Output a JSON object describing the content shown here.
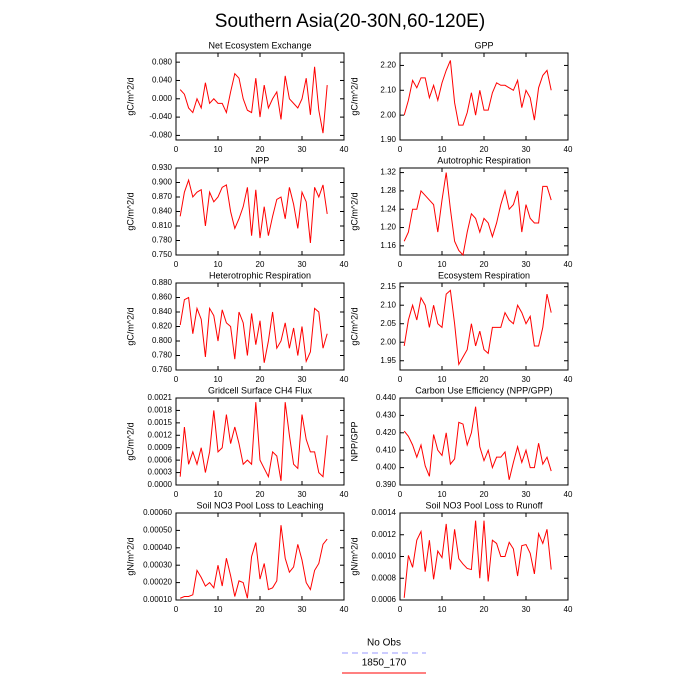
{
  "title": "Southern Asia(20-30N,60-120E)",
  "legend": [
    {
      "name": "No Obs",
      "color": "#9999ff",
      "dashed": true
    },
    {
      "name": "1850_170",
      "color": "#ff0000",
      "dashed": false
    }
  ],
  "chart_data": [
    {
      "type": "line",
      "title": "Net Ecosystem Exchange",
      "ylabel": "gC/m^2/d",
      "color": "#ff0000",
      "x": [
        1,
        2,
        3,
        4,
        5,
        6,
        7,
        8,
        9,
        10,
        11,
        12,
        13,
        14,
        15,
        16,
        17,
        18,
        19,
        20,
        21,
        22,
        23,
        24,
        25,
        26,
        27,
        28,
        29,
        30,
        31,
        32,
        33,
        34,
        35,
        36
      ],
      "values": [
        0.02,
        0.01,
        -0.02,
        -0.03,
        0.0,
        -0.02,
        0.035,
        -0.01,
        0.0,
        -0.01,
        -0.01,
        -0.03,
        0.015,
        0.055,
        0.045,
        0.0,
        -0.025,
        -0.03,
        0.045,
        -0.04,
        0.03,
        -0.02,
        0.0,
        0.015,
        -0.045,
        0.05,
        0.0,
        -0.01,
        -0.02,
        0.0,
        0.045,
        -0.035,
        0.07,
        -0.025,
        -0.075,
        0.03
      ],
      "xlim": [
        0,
        40
      ],
      "xticks": [
        0,
        10,
        20,
        30,
        40
      ],
      "ylim": [
        -0.09,
        0.1
      ],
      "yticks": [
        {
          "value": -0.08,
          "label": "-0.080"
        },
        {
          "value": -0.04,
          "label": "-0.040"
        },
        {
          "value": 0,
          "label": "0.000"
        },
        {
          "value": 0.04,
          "label": "0.040"
        },
        {
          "value": 0.08,
          "label": "0.080"
        }
      ]
    },
    {
      "type": "line",
      "title": "GPP",
      "ylabel": "gC/m^2/d",
      "color": "#ff0000",
      "x": [
        1,
        2,
        3,
        4,
        5,
        6,
        7,
        8,
        9,
        10,
        11,
        12,
        13,
        14,
        15,
        16,
        17,
        18,
        19,
        20,
        21,
        22,
        23,
        24,
        25,
        26,
        27,
        28,
        29,
        30,
        31,
        32,
        33,
        34,
        35,
        36
      ],
      "values": [
        2.0,
        2.06,
        2.14,
        2.11,
        2.15,
        2.15,
        2.07,
        2.12,
        2.06,
        2.13,
        2.18,
        2.22,
        2.05,
        1.96,
        1.96,
        2.01,
        2.09,
        2.0,
        2.1,
        2.02,
        2.02,
        2.09,
        2.13,
        2.12,
        2.12,
        2.11,
        2.1,
        2.14,
        2.03,
        2.1,
        2.07,
        1.98,
        2.11,
        2.16,
        2.18,
        2.1
      ],
      "xlim": [
        0,
        40
      ],
      "xticks": [
        0,
        10,
        20,
        30,
        40
      ],
      "ylim": [
        1.9,
        2.25
      ],
      "yticks": [
        {
          "value": 1.9,
          "label": "1.90"
        },
        {
          "value": 2.0,
          "label": "2.00"
        },
        {
          "value": 2.1,
          "label": "2.10"
        },
        {
          "value": 2.2,
          "label": "2.20"
        }
      ]
    },
    {
      "type": "line",
      "title": "NPP",
      "ylabel": "gC/m^2/d",
      "color": "#ff0000",
      "x": [
        1,
        2,
        3,
        4,
        5,
        6,
        7,
        8,
        9,
        10,
        11,
        12,
        13,
        14,
        15,
        16,
        17,
        18,
        19,
        20,
        21,
        22,
        23,
        24,
        25,
        26,
        27,
        28,
        29,
        30,
        31,
        32,
        33,
        34,
        35,
        36
      ],
      "values": [
        0.83,
        0.88,
        0.905,
        0.87,
        0.88,
        0.885,
        0.81,
        0.88,
        0.86,
        0.87,
        0.89,
        0.895,
        0.84,
        0.805,
        0.825,
        0.85,
        0.89,
        0.79,
        0.885,
        0.785,
        0.85,
        0.79,
        0.83,
        0.865,
        0.87,
        0.825,
        0.89,
        0.855,
        0.805,
        0.88,
        0.86,
        0.775,
        0.89,
        0.87,
        0.895,
        0.835
      ],
      "xlim": [
        0,
        40
      ],
      "xticks": [
        0,
        10,
        20,
        30,
        40
      ],
      "ylim": [
        0.75,
        0.93
      ],
      "yticks": [
        {
          "value": 0.75,
          "label": "0.750"
        },
        {
          "value": 0.78,
          "label": "0.780"
        },
        {
          "value": 0.81,
          "label": "0.810"
        },
        {
          "value": 0.84,
          "label": "0.840"
        },
        {
          "value": 0.87,
          "label": "0.870"
        },
        {
          "value": 0.9,
          "label": "0.900"
        },
        {
          "value": 0.93,
          "label": "0.930"
        }
      ]
    },
    {
      "type": "line",
      "title": "Autotrophic Respiration",
      "ylabel": "gC/m^2/d",
      "color": "#ff0000",
      "x": [
        1,
        2,
        3,
        4,
        5,
        6,
        7,
        8,
        9,
        10,
        11,
        12,
        13,
        14,
        15,
        16,
        17,
        18,
        19,
        20,
        21,
        22,
        23,
        24,
        25,
        26,
        27,
        28,
        29,
        30,
        31,
        32,
        33,
        34,
        35,
        36
      ],
      "values": [
        1.17,
        1.19,
        1.24,
        1.24,
        1.28,
        1.27,
        1.26,
        1.25,
        1.19,
        1.26,
        1.32,
        1.24,
        1.17,
        1.15,
        1.14,
        1.19,
        1.23,
        1.22,
        1.19,
        1.22,
        1.21,
        1.18,
        1.21,
        1.25,
        1.28,
        1.24,
        1.25,
        1.28,
        1.19,
        1.25,
        1.22,
        1.21,
        1.21,
        1.29,
        1.29,
        1.26
      ],
      "xlim": [
        0,
        40
      ],
      "xticks": [
        0,
        10,
        20,
        30,
        40
      ],
      "ylim": [
        1.14,
        1.33
      ],
      "yticks": [
        {
          "value": 1.16,
          "label": "1.16"
        },
        {
          "value": 1.2,
          "label": "1.20"
        },
        {
          "value": 1.24,
          "label": "1.24"
        },
        {
          "value": 1.28,
          "label": "1.28"
        },
        {
          "value": 1.32,
          "label": "1.32"
        }
      ]
    },
    {
      "type": "line",
      "title": "Heterotrophic Respiration",
      "ylabel": "gC/m^2/d",
      "color": "#ff0000",
      "x": [
        1,
        2,
        3,
        4,
        5,
        6,
        7,
        8,
        9,
        10,
        11,
        12,
        13,
        14,
        15,
        16,
        17,
        18,
        19,
        20,
        21,
        22,
        23,
        24,
        25,
        26,
        27,
        28,
        29,
        30,
        31,
        32,
        33,
        34,
        35,
        36
      ],
      "values": [
        0.822,
        0.857,
        0.86,
        0.81,
        0.845,
        0.83,
        0.778,
        0.845,
        0.835,
        0.8,
        0.843,
        0.825,
        0.82,
        0.775,
        0.84,
        0.825,
        0.78,
        0.838,
        0.795,
        0.828,
        0.77,
        0.8,
        0.84,
        0.79,
        0.8,
        0.825,
        0.79,
        0.818,
        0.78,
        0.82,
        0.772,
        0.785,
        0.845,
        0.84,
        0.79,
        0.81
      ],
      "xlim": [
        0,
        40
      ],
      "xticks": [
        0,
        10,
        20,
        30,
        40
      ],
      "ylim": [
        0.76,
        0.88
      ],
      "yticks": [
        {
          "value": 0.76,
          "label": "0.760"
        },
        {
          "value": 0.78,
          "label": "0.780"
        },
        {
          "value": 0.8,
          "label": "0.800"
        },
        {
          "value": 0.82,
          "label": "0.820"
        },
        {
          "value": 0.84,
          "label": "0.840"
        },
        {
          "value": 0.86,
          "label": "0.860"
        },
        {
          "value": 0.88,
          "label": "0.880"
        }
      ]
    },
    {
      "type": "line",
      "title": "Ecosystem Respiration",
      "ylabel": "gC/m^2/d",
      "color": "#ff0000",
      "x": [
        1,
        2,
        3,
        4,
        5,
        6,
        7,
        8,
        9,
        10,
        11,
        12,
        13,
        14,
        15,
        16,
        17,
        18,
        19,
        20,
        21,
        22,
        23,
        24,
        25,
        26,
        27,
        28,
        29,
        30,
        31,
        32,
        33,
        34,
        35,
        36
      ],
      "values": [
        1.99,
        2.06,
        2.1,
        2.06,
        2.12,
        2.1,
        2.04,
        2.1,
        2.05,
        2.04,
        2.13,
        2.14,
        2.05,
        1.94,
        1.96,
        1.98,
        2.05,
        1.99,
        2.03,
        1.98,
        1.97,
        2.04,
        2.04,
        2.04,
        2.08,
        2.06,
        2.05,
        2.1,
        2.08,
        2.05,
        2.07,
        1.99,
        1.99,
        2.04,
        2.13,
        2.08
      ],
      "xlim": [
        0,
        40
      ],
      "xticks": [
        0,
        10,
        20,
        30,
        40
      ],
      "ylim": [
        1.925,
        2.16
      ],
      "yticks": [
        {
          "value": 1.95,
          "label": "1.95"
        },
        {
          "value": 2.0,
          "label": "2.00"
        },
        {
          "value": 2.05,
          "label": "2.05"
        },
        {
          "value": 2.1,
          "label": "2.10"
        },
        {
          "value": 2.15,
          "label": "2.15"
        }
      ]
    },
    {
      "type": "line",
      "title": "Gridcell Surface CH4 Flux",
      "ylabel": "gC/m^2/d",
      "color": "#ff0000",
      "x": [
        1,
        2,
        3,
        4,
        5,
        6,
        7,
        8,
        9,
        10,
        11,
        12,
        13,
        14,
        15,
        16,
        17,
        18,
        19,
        20,
        21,
        22,
        23,
        24,
        25,
        26,
        27,
        28,
        29,
        30,
        31,
        32,
        33,
        34,
        35,
        36
      ],
      "values": [
        0.0002,
        0.0014,
        0.0005,
        0.0008,
        0.0005,
        0.0009,
        0.0003,
        0.0008,
        0.0018,
        0.0008,
        0.0009,
        0.0017,
        0.001,
        0.0014,
        0.001,
        0.0005,
        0.0006,
        0.0005,
        0.002,
        0.0006,
        0.0004,
        0.0002,
        0.0008,
        0.0007,
        0.0001,
        0.002,
        0.0012,
        0.0005,
        0.0004,
        0.0017,
        0.0011,
        0.0008,
        0.0008,
        0.0003,
        0.0002,
        0.0012
      ],
      "xlim": [
        0,
        40
      ],
      "xticks": [
        0,
        10,
        20,
        30,
        40
      ],
      "ylim": [
        0,
        0.0021
      ],
      "yticks": [
        {
          "value": 0,
          "label": "0.0000"
        },
        {
          "value": 0.0003,
          "label": "0.0003"
        },
        {
          "value": 0.0006,
          "label": "0.0006"
        },
        {
          "value": 0.0009,
          "label": "0.0009"
        },
        {
          "value": 0.0012,
          "label": "0.0012"
        },
        {
          "value": 0.0015,
          "label": "0.0015"
        },
        {
          "value": 0.0018,
          "label": "0.0018"
        },
        {
          "value": 0.0021,
          "label": "0.0021"
        }
      ]
    },
    {
      "type": "line",
      "title": "Carbon Use Efficiency (NPP/GPP)",
      "ylabel": "NPP/GPP",
      "color": "#ff0000",
      "x": [
        1,
        2,
        3,
        4,
        5,
        6,
        7,
        8,
        9,
        10,
        11,
        12,
        13,
        14,
        15,
        16,
        17,
        18,
        19,
        20,
        21,
        22,
        23,
        24,
        25,
        26,
        27,
        28,
        29,
        30,
        31,
        32,
        33,
        34,
        35,
        36
      ],
      "values": [
        0.421,
        0.418,
        0.413,
        0.406,
        0.413,
        0.401,
        0.395,
        0.419,
        0.41,
        0.407,
        0.42,
        0.402,
        0.405,
        0.426,
        0.425,
        0.413,
        0.42,
        0.435,
        0.412,
        0.404,
        0.41,
        0.4,
        0.406,
        0.406,
        0.409,
        0.393,
        0.403,
        0.412,
        0.403,
        0.41,
        0.4,
        0.4,
        0.414,
        0.402,
        0.406,
        0.398
      ],
      "xlim": [
        0,
        40
      ],
      "xticks": [
        0,
        10,
        20,
        30,
        40
      ],
      "ylim": [
        0.39,
        0.44
      ],
      "yticks": [
        {
          "value": 0.39,
          "label": "0.390"
        },
        {
          "value": 0.4,
          "label": "0.400"
        },
        {
          "value": 0.41,
          "label": "0.410"
        },
        {
          "value": 0.42,
          "label": "0.420"
        },
        {
          "value": 0.43,
          "label": "0.430"
        },
        {
          "value": 0.44,
          "label": "0.440"
        }
      ]
    },
    {
      "type": "line",
      "title": "Soil NO3 Pool Loss to Leaching",
      "ylabel": "gN/m^2/d",
      "color": "#ff0000",
      "x": [
        1,
        2,
        3,
        4,
        5,
        6,
        7,
        8,
        9,
        10,
        11,
        12,
        13,
        14,
        15,
        16,
        17,
        18,
        19,
        20,
        21,
        22,
        23,
        24,
        25,
        26,
        27,
        28,
        29,
        30,
        31,
        32,
        33,
        34,
        35,
        36
      ],
      "values": [
        0.00011,
        0.00012,
        0.00012,
        0.00013,
        0.00027,
        0.00023,
        0.00018,
        0.0002,
        0.00017,
        0.0003,
        0.00018,
        0.00034,
        0.00024,
        0.00012,
        0.00021,
        0.0002,
        0.00011,
        0.00035,
        0.00043,
        0.00022,
        0.00031,
        0.00016,
        0.00017,
        0.00021,
        0.00053,
        0.00034,
        0.00026,
        0.00029,
        0.00042,
        0.00033,
        0.0002,
        0.00016,
        0.00027,
        0.00031,
        0.00042,
        0.00045
      ],
      "xlim": [
        0,
        40
      ],
      "xticks": [
        0,
        10,
        20,
        30,
        40
      ],
      "ylim": [
        0.0001,
        0.0006
      ],
      "yticks": [
        {
          "value": 0.0001,
          "label": "0.00010"
        },
        {
          "value": 0.0002,
          "label": "0.00020"
        },
        {
          "value": 0.0003,
          "label": "0.00030"
        },
        {
          "value": 0.0004,
          "label": "0.00040"
        },
        {
          "value": 0.0005,
          "label": "0.00050"
        },
        {
          "value": 0.0006,
          "label": "0.00060"
        }
      ]
    },
    {
      "type": "line",
      "title": "Soil NO3 Pool Loss to Runoff",
      "ylabel": "gN/m^2/d",
      "color": "#ff0000",
      "x": [
        1,
        2,
        3,
        4,
        5,
        6,
        7,
        8,
        9,
        10,
        11,
        12,
        13,
        14,
        15,
        16,
        17,
        18,
        19,
        20,
        21,
        22,
        23,
        24,
        25,
        26,
        27,
        28,
        29,
        30,
        31,
        32,
        33,
        34,
        35,
        36
      ],
      "values": [
        0.00062,
        0.00101,
        0.0009,
        0.00115,
        0.00123,
        0.00086,
        0.00115,
        0.00079,
        0.00105,
        0.00099,
        0.0013,
        0.00088,
        0.00125,
        0.00098,
        0.00093,
        0.00089,
        0.00088,
        0.00133,
        0.0008,
        0.00133,
        0.00077,
        0.00115,
        0.00112,
        0.001,
        0.001,
        0.00113,
        0.00107,
        0.00082,
        0.0011,
        0.00111,
        0.00103,
        0.00084,
        0.00121,
        0.00112,
        0.00125,
        0.00088
      ],
      "xlim": [
        0,
        40
      ],
      "xticks": [
        0,
        10,
        20,
        30,
        40
      ],
      "ylim": [
        0.0006,
        0.0014
      ],
      "yticks": [
        {
          "value": 0.0006,
          "label": "0.0006"
        },
        {
          "value": 0.0008,
          "label": "0.0008"
        },
        {
          "value": 0.001,
          "label": "0.0010"
        },
        {
          "value": 0.0012,
          "label": "0.0012"
        },
        {
          "value": 0.0014,
          "label": "0.0014"
        }
      ]
    }
  ]
}
